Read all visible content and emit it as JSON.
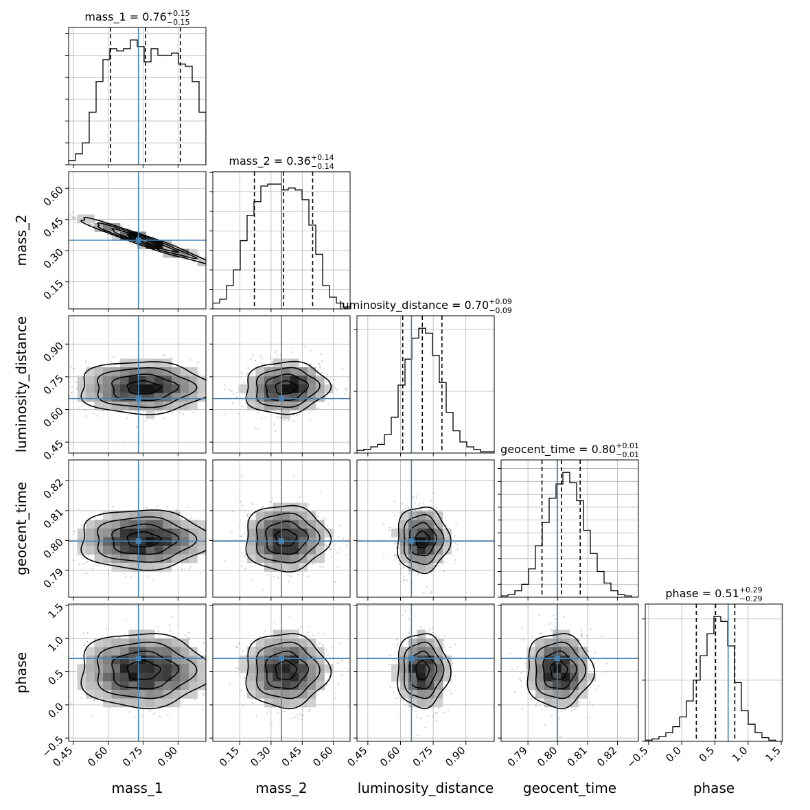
{
  "colors": {
    "truth": "#4682b4",
    "contour": "#000000",
    "grid": "#b0b0b0",
    "scatter": "#9a9a9a"
  },
  "params": [
    "mass_1",
    "mass_2",
    "luminosity_distance",
    "geocent_time",
    "phase"
  ],
  "chart_data": {
    "type": "corner",
    "title": "",
    "grid": true,
    "axis_labels": [
      "mass_1",
      "mass_2",
      "luminosity_distance",
      "geocent_time",
      "phase"
    ],
    "titles": [
      {
        "param": "mass_1",
        "prefix": "mass_1 = ",
        "median": "0.76",
        "plus": "+0.15",
        "minus": "−0.15"
      },
      {
        "param": "mass_2",
        "prefix": "mass_2 = ",
        "median": "0.36",
        "plus": "+0.14",
        "minus": "−0.14"
      },
      {
        "param": "luminosity_distance",
        "prefix": "luminosity_distance = ",
        "median": "0.70",
        "plus": "+0.09",
        "minus": "−0.09"
      },
      {
        "param": "geocent_time",
        "prefix": "geocent_time = ",
        "median": "0.80",
        "plus": "+0.01",
        "minus": "−0.01"
      },
      {
        "param": "phase",
        "prefix": "phase = ",
        "median": "0.51",
        "plus": "+0.29",
        "minus": "−0.29"
      }
    ],
    "ranges": [
      [
        0.43,
        1.02
      ],
      [
        0.02,
        0.68
      ],
      [
        0.4,
        1.03
      ],
      [
        0.781,
        0.827
      ],
      [
        -0.55,
        1.52
      ]
    ],
    "ticks": [
      {
        "values": [
          0.45,
          0.6,
          0.75,
          0.9
        ],
        "labels": [
          "0.45",
          "0.60",
          "0.75",
          "0.90"
        ]
      },
      {
        "values": [
          0.15,
          0.3,
          0.45,
          0.6
        ],
        "labels": [
          "0.15",
          "0.30",
          "0.45",
          "0.60"
        ]
      },
      {
        "values": [
          0.45,
          0.6,
          0.75,
          0.9
        ],
        "labels": [
          "0.45",
          "0.60",
          "0.75",
          "0.90"
        ]
      },
      {
        "values": [
          0.79,
          0.8,
          0.81,
          0.82
        ],
        "labels": [
          "0.79",
          "0.80",
          "0.81",
          "0.82"
        ]
      },
      {
        "values": [
          -0.5,
          0,
          0.5,
          1,
          1.5
        ],
        "labels": [
          "−0.5",
          "0.0",
          "0.5",
          "1.0",
          "1.5"
        ]
      }
    ],
    "truths": [
      0.73,
      0.35,
      0.65,
      0.7998,
      0.7
    ],
    "quantiles": [
      [
        0.61,
        0.76,
        0.91
      ],
      [
        0.22,
        0.36,
        0.5
      ],
      [
        0.61,
        0.7,
        0.79
      ],
      [
        0.7947,
        0.8012,
        0.8075
      ],
      [
        0.22,
        0.51,
        0.8
      ]
    ],
    "histograms": [
      {
        "param": "mass_1",
        "bin_start": 0.43,
        "bin_width": 0.0295,
        "counts": [
          2,
          5,
          10,
          24,
          38,
          48,
          53,
          52,
          53,
          57,
          54,
          47,
          53,
          50,
          50,
          51,
          46,
          45,
          38,
          24
        ]
      },
      {
        "param": "mass_2",
        "bin_start": 0.02,
        "bin_width": 0.033,
        "counts": [
          3,
          5,
          12,
          20,
          35,
          48,
          55,
          63,
          64,
          64,
          61,
          62,
          61,
          56,
          43,
          28,
          12,
          6,
          3,
          1
        ]
      },
      {
        "param": "luminosity_distance",
        "bin_start": 0.4,
        "bin_width": 0.0315,
        "counts": [
          2,
          3,
          5,
          7,
          15,
          29,
          55,
          76,
          93,
          101,
          97,
          79,
          57,
          33,
          18,
          9,
          5,
          3,
          1,
          1
        ]
      },
      {
        "param": "geocent_time",
        "bin_start": 0.781,
        "bin_width": 0.0023,
        "counts": [
          1,
          2,
          5,
          10,
          22,
          40,
          58,
          77,
          88,
          97,
          89,
          75,
          52,
          34,
          20,
          11,
          5,
          2,
          1,
          0
        ]
      },
      {
        "param": "phase",
        "bin_start": -0.55,
        "bin_width": 0.1035,
        "counts": [
          1,
          2,
          4,
          7,
          12,
          20,
          33,
          50,
          70,
          88,
          102,
          98,
          78,
          48,
          25,
          14,
          7,
          3,
          1,
          0
        ]
      }
    ],
    "samples_2d": [
      {
        "x": "mass_1",
        "y": "mass_2",
        "center": [
          0.75,
          0.35
        ],
        "sd": [
          0.14,
          0.055
        ],
        "rho": -0.97
      },
      {
        "x": "mass_1",
        "y": "luminosity_distance",
        "center": [
          0.75,
          0.7
        ],
        "sd": [
          0.14,
          0.06
        ],
        "rho": 0.0
      },
      {
        "x": "mass_2",
        "y": "luminosity_distance",
        "center": [
          0.37,
          0.7
        ],
        "sd": [
          0.1,
          0.06
        ],
        "rho": 0.08
      },
      {
        "x": "mass_1",
        "y": "geocent_time",
        "center": [
          0.75,
          0.8003
        ],
        "sd": [
          0.14,
          0.005
        ],
        "rho": 0.0
      },
      {
        "x": "mass_2",
        "y": "geocent_time",
        "center": [
          0.37,
          0.8008
        ],
        "sd": [
          0.1,
          0.0055
        ],
        "rho": 0.0
      },
      {
        "x": "luminosity_distance",
        "y": "geocent_time",
        "center": [
          0.7,
          0.8003
        ],
        "sd": [
          0.06,
          0.0055
        ],
        "rho": 0.0
      },
      {
        "x": "mass_1",
        "y": "phase",
        "center": [
          0.75,
          0.52
        ],
        "sd": [
          0.14,
          0.28
        ],
        "rho": 0.0
      },
      {
        "x": "mass_2",
        "y": "phase",
        "center": [
          0.37,
          0.52
        ],
        "sd": [
          0.1,
          0.28
        ],
        "rho": 0.0
      },
      {
        "x": "luminosity_distance",
        "y": "phase",
        "center": [
          0.7,
          0.52
        ],
        "sd": [
          0.06,
          0.28
        ],
        "rho": 0.0
      },
      {
        "x": "geocent_time",
        "y": "phase",
        "center": [
          0.8003,
          0.52
        ],
        "sd": [
          0.0055,
          0.28
        ],
        "rho": 0.0
      }
    ]
  }
}
